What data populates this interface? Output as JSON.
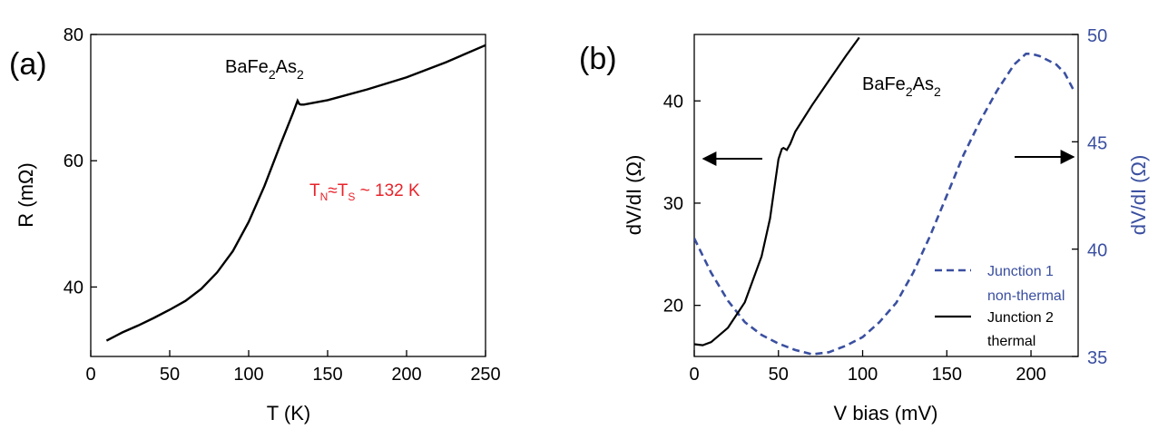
{
  "chart_data": [
    {
      "type": "line",
      "panel_label": "(a)",
      "xlabel": "T (K)",
      "ylabel": "R (mΩ)",
      "xlim": [
        0,
        250
      ],
      "ylim": [
        29,
        80
      ],
      "xticks": [
        "0",
        "50",
        "100",
        "150",
        "200",
        "250"
      ],
      "yticks": [
        "40",
        "60",
        "80"
      ],
      "annotation": {
        "base": "BaFe",
        "sub1": "2",
        "mid": "As",
        "sub2": "2"
      },
      "transition": {
        "t_n": "T",
        "sub_n": "N",
        "approx": "≈",
        "t_s": "T",
        "sub_s": "S",
        "value": " ~  132 K"
      },
      "series": [
        {
          "name": "R(T)",
          "x": [
            10,
            20,
            30,
            40,
            50,
            60,
            70,
            80,
            90,
            100,
            110,
            120,
            128,
            131,
            132,
            133,
            135,
            150,
            175,
            200,
            225,
            250
          ],
          "y": [
            31.5,
            32.8,
            33.9,
            35.1,
            36.4,
            37.8,
            39.7,
            42.3,
            45.7,
            50.3,
            56.0,
            62.5,
            67.5,
            69.5,
            69.0,
            68.9,
            68.9,
            69.6,
            71.3,
            73.2,
            75.6,
            78.3
          ]
        }
      ]
    },
    {
      "type": "line",
      "panel_label": "(b)",
      "xlabel": "V bias (mV)",
      "ylabel_left": "dV/dI (Ω)",
      "ylabel_right": "dV/dI (Ω)",
      "xlim": [
        0,
        228
      ],
      "ylim_left": [
        15,
        46.5
      ],
      "ylim_right": [
        35,
        50
      ],
      "xticks": [
        "0",
        "50",
        "100",
        "150",
        "200"
      ],
      "yticks_left": [
        "20",
        "30",
        "40"
      ],
      "yticks_right": [
        "35",
        "40",
        "45",
        "50"
      ],
      "annotation": {
        "base": "BaFe",
        "sub1": "2",
        "mid": "As",
        "sub2": "2"
      },
      "legend": [
        {
          "label_line1": "Junction 1",
          "label_line2": "non-thermal",
          "style": "dashed",
          "color": "#3a4fa0"
        },
        {
          "label_line1": "Junction 2",
          "label_line2": "thermal",
          "style": "solid",
          "color": "#000000"
        }
      ],
      "series": [
        {
          "name": "Junction 2 thermal",
          "axis": "left",
          "x": [
            0,
            5,
            10,
            20,
            30,
            40,
            45,
            48,
            50,
            52,
            53,
            55,
            57,
            60,
            70,
            80,
            90,
            98
          ],
          "y": [
            16.2,
            16.1,
            16.4,
            17.8,
            20.3,
            24.8,
            28.5,
            32.0,
            34.3,
            35.3,
            35.4,
            35.2,
            35.8,
            37.0,
            39.6,
            42.0,
            44.4,
            46.2
          ]
        },
        {
          "name": "Junction 1 non-thermal",
          "axis": "right",
          "x": [
            0,
            10,
            20,
            30,
            40,
            50,
            60,
            70,
            80,
            90,
            100,
            110,
            120,
            130,
            140,
            150,
            160,
            170,
            180,
            190,
            197,
            200,
            205,
            210,
            215,
            220,
            226
          ],
          "y": [
            40.5,
            38.9,
            37.6,
            36.6,
            36.0,
            35.6,
            35.3,
            35.1,
            35.2,
            35.5,
            35.9,
            36.6,
            37.5,
            38.9,
            40.6,
            42.5,
            44.4,
            46.0,
            47.4,
            48.6,
            49.1,
            49.1,
            49.0,
            48.8,
            48.6,
            48.2,
            47.3
          ]
        }
      ]
    }
  ]
}
